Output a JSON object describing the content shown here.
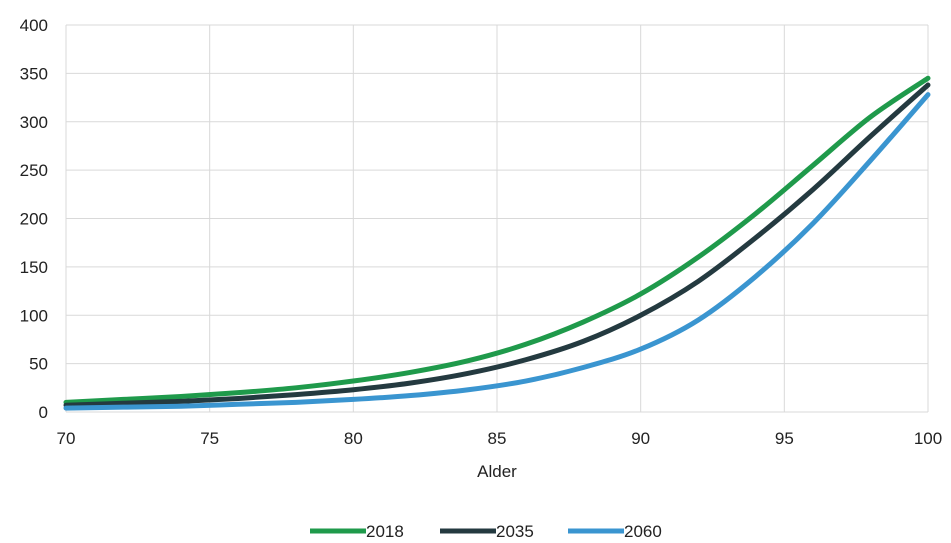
{
  "chart_data": {
    "type": "line",
    "title": "",
    "xlabel": "Alder",
    "ylabel": "",
    "xlim": [
      70,
      100
    ],
    "ylim": [
      0,
      400
    ],
    "x_ticks": [
      "70",
      "75",
      "80",
      "85",
      "90",
      "95",
      "100"
    ],
    "y_ticks": [
      "0",
      "50",
      "100",
      "150",
      "200",
      "250",
      "300",
      "350",
      "400"
    ],
    "grid": true,
    "legend_position": "bottom",
    "x": [
      70,
      72,
      74,
      76,
      78,
      80,
      82,
      84,
      86,
      88,
      90,
      92,
      94,
      96,
      98,
      100
    ],
    "series": [
      {
        "name": "2018",
        "color": "#1f9a4b",
        "values": [
          10,
          13,
          16,
          20,
          25,
          32,
          41,
          53,
          70,
          93,
          122,
          160,
          205,
          255,
          305,
          345
        ]
      },
      {
        "name": "2035",
        "color": "#243a40",
        "values": [
          7,
          9,
          11,
          14,
          18,
          23,
          30,
          40,
          54,
          73,
          100,
          135,
          180,
          230,
          285,
          338
        ]
      },
      {
        "name": "2060",
        "color": "#3a95d0",
        "values": [
          4,
          5,
          6,
          8,
          10,
          13,
          17,
          23,
          32,
          46,
          65,
          95,
          140,
          195,
          260,
          328
        ]
      }
    ]
  }
}
